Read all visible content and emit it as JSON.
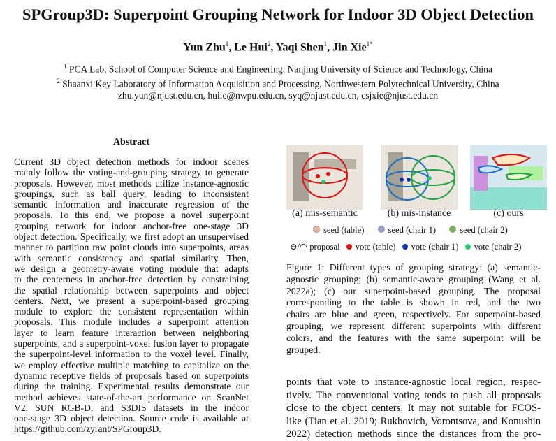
{
  "title": "SPGroup3D: Superpoint Grouping Network for Indoor 3D Object Detection",
  "authors": [
    {
      "name": "Yun Zhu",
      "aff": "1"
    },
    {
      "name": "Le Hui",
      "aff": "2"
    },
    {
      "name": "Yaqi Shen",
      "aff": "1"
    },
    {
      "name": "Jin Xie",
      "aff": "1*"
    }
  ],
  "affiliations": [
    {
      "mark": "1",
      "text": "PCA Lab, School of Computer Science and Engineering, Nanjing University of Science and Technology, China"
    },
    {
      "mark": "2",
      "text": "Shaanxi Key Laboratory of Information Acquisition and Processing, Northwestern Polytechnical University, China"
    }
  ],
  "emails": "zhu.yun@njust.edu.cn, huile@nwpu.edu.cn, syq@njust.edu.cn, csjxie@njust.edu.cn",
  "abstract": {
    "heading": "Abstract",
    "lines": [
      "Current 3D object detection methods for indoor scenes",
      "mainly follow the voting-and-grouping strategy to generate",
      "proposals. However, most methods utilize instance-agnostic",
      "groupings, such as ball query, leading to inconsistent",
      "semantic information and inaccurate regression of the",
      "proposals. To this end, we propose a novel superpoint",
      "grouping network for indoor anchor-free one-stage 3D",
      "object detection. Specifically, we first adopt an unsupervised",
      "manner to partition raw point clouds into superpoints, areas",
      "with semantic consistency and spatial similarity. Then,",
      "we design a geometry-aware voting module that adapts",
      "to the centerness in anchor-free detection by constraining",
      "the spatial relationship between superpoints and object",
      "centers. Next, we present a superpoint-based grouping",
      "module to explore the consistent representation within",
      "proposals. This module includes a superpoint attention",
      "layer to learn feature interaction between neighboring",
      "superpoints, and a superpoint-voxel fusion layer to propagate",
      "the superpoint-level information to the voxel level. Finally,",
      "we employ effective multiple matching to capitalize on the",
      "dynamic receptive fields of proposals based on superpoints",
      "during the training. Experimental results demonstrate our",
      "method achieves state-of-the-art performance on ScanNet",
      "V2, SUN RGB-D, and S3DIS datasets in the indoor",
      "one-stage 3D object detection. Source code is available at",
      "https://github.com/zyrant/SPGroup3D."
    ]
  },
  "figure": {
    "subcaptions": [
      "(a) mis-semantic",
      "(b) mis-instance",
      "(c) ours"
    ],
    "legend_row1": [
      {
        "label": "seed (table)",
        "color": "#e8b89a"
      },
      {
        "label": "seed (chair 1)",
        "color": "#8fa3cc"
      },
      {
        "label": "seed (chair 2)",
        "color": "#7fb24a"
      }
    ],
    "legend_proposal": "proposal",
    "legend_row2": [
      {
        "label": "vote (table)",
        "color": "#e01010"
      },
      {
        "label": "vote (chair 1)",
        "color": "#1030b0"
      },
      {
        "label": "vote (chair 2)",
        "color": "#20d070"
      }
    ],
    "caption_lines": [
      "Figure 1: Different types of grouping strategy: (a) semantic-",
      "agnostic grouping; (b) semantic-aware grouping (Wang et al.",
      "2022a); (c) our superpoint-based grouping. The proposal",
      "corresponding to the table is shown in red, and the two",
      "chairs are blue and green, respectively. For superpoint-based",
      "grouping, we represent different superpoints with different",
      "colors, and the features with the same superpoint will be",
      "grouped."
    ]
  },
  "body_lines": [
    "points that vote to instance-agnostic local region, respec-",
    "tively. The conventional voting tends to push all proposals",
    "close to the object centers. It may not suitable for FCOS-",
    "like (Tian et al. 2019; Rukhovich, Vorontsova, and Konushin",
    "2022) detection methods since the distances from the pro-"
  ]
}
